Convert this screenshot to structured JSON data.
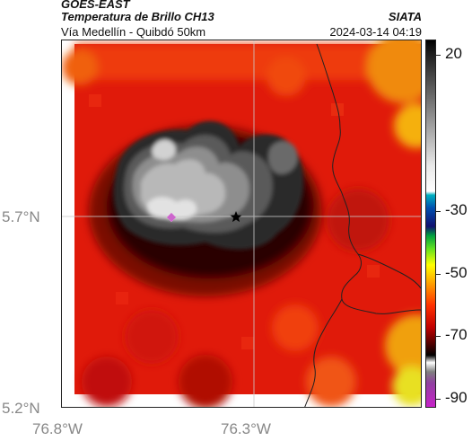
{
  "header": {
    "satellite": "GOES-EAST",
    "product": "Temperatura de Brillo CH13",
    "region": "Vía Medellín - Quibdó 50km",
    "organization": "SIATA",
    "datetime": "2024-03-14 04:19"
  },
  "map": {
    "lat_ticks": [
      "5.7°N",
      "5.2°N"
    ],
    "lon_ticks": [
      "76.8°W",
      "76.3°W"
    ],
    "markers": [
      {
        "name": "pink-diamond-marker",
        "color": "#cc66cc"
      },
      {
        "name": "black-star-marker",
        "color": "#000000"
      }
    ],
    "colors": {
      "gridline": "#cccccc",
      "boundary": "#222222"
    }
  },
  "colorbar": {
    "labels": [
      "20",
      "-30",
      "-50",
      "-70",
      "-90"
    ],
    "values": [
      20,
      -30,
      -50,
      -70,
      -90
    ],
    "range": [
      25,
      -93
    ]
  }
}
